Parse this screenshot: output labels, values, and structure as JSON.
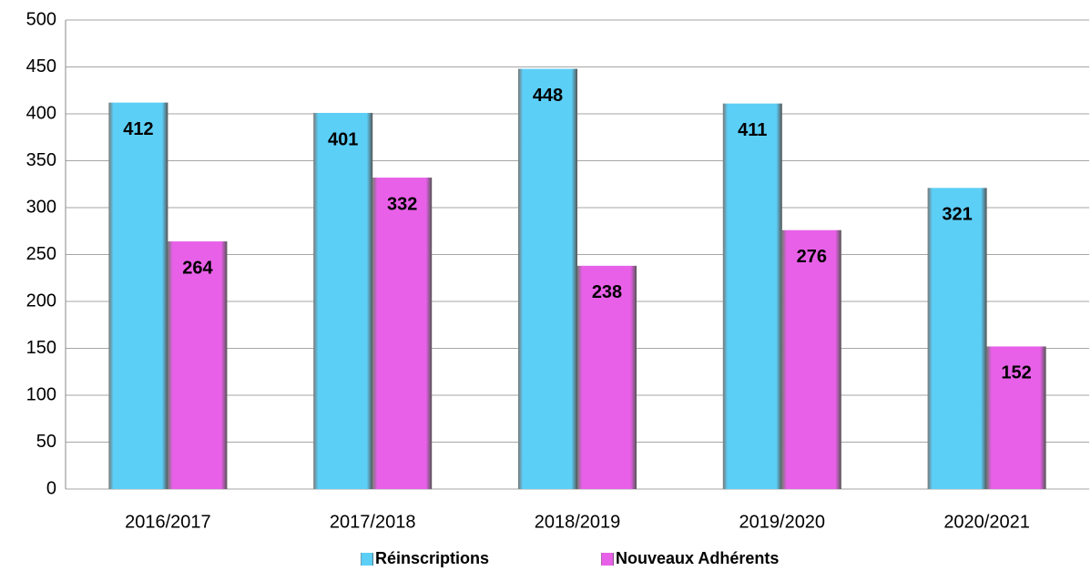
{
  "chart_data": {
    "type": "bar",
    "categories": [
      "2016/2017",
      "2017/2018",
      "2018/2019",
      "2019/2020",
      "2020/2021"
    ],
    "series": [
      {
        "name": "Réinscriptions",
        "color": "#5ccff7",
        "values": [
          412,
          401,
          448,
          411,
          321
        ]
      },
      {
        "name": "Nouveaux Adhérents",
        "color": "#e860e8",
        "values": [
          264,
          332,
          238,
          276,
          152
        ]
      }
    ],
    "ylim": [
      0,
      500
    ],
    "yticks": [
      0,
      50,
      100,
      150,
      200,
      250,
      300,
      350,
      400,
      450,
      500
    ],
    "grid": true,
    "legend": "bottom"
  }
}
